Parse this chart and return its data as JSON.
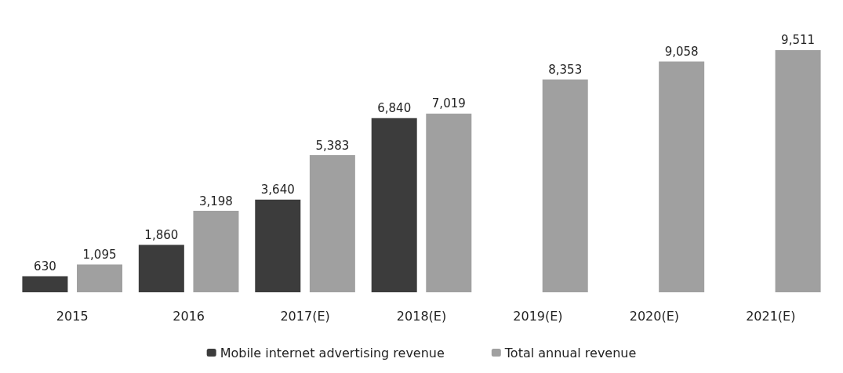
{
  "chart_data": {
    "type": "bar",
    "categories": [
      "2015",
      "2016",
      "2017(E)",
      "2018(E)",
      "2019(E)",
      "2020(E)",
      "2021(E)"
    ],
    "series": [
      {
        "name": "Mobile internet advertising revenue",
        "color": "#3c3c3c",
        "values": [
          630,
          1860,
          3640,
          6840,
          null,
          null,
          null
        ],
        "value_labels": [
          "630",
          "1,860",
          "3,640",
          "6,840",
          null,
          null,
          null
        ]
      },
      {
        "name": "Total annual revenue",
        "color": "#a0a0a0",
        "values": [
          1095,
          3198,
          5383,
          7019,
          8353,
          9058,
          9511
        ],
        "value_labels": [
          "1,095",
          "3,198",
          "5,383",
          "7,019",
          "8,353",
          "9,058",
          "9,511"
        ]
      }
    ],
    "legend": "bottom",
    "tick_labels": "x"
  }
}
